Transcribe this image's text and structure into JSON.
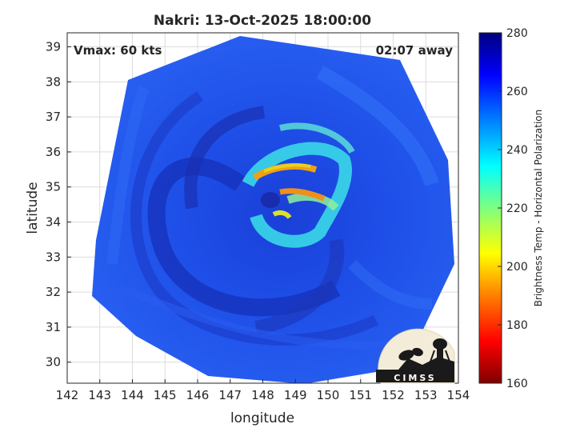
{
  "title": "Nakri: 13-Oct-2025 18:00:00",
  "annotations": {
    "vmax": "Vmax: 60 kts",
    "time_away": "02:07 away"
  },
  "axes": {
    "xlabel": "longitude",
    "ylabel": "latitude",
    "xlim": [
      142,
      154
    ],
    "ylim": [
      29.4,
      39.4
    ],
    "xticks": [
      "142",
      "143",
      "144",
      "145",
      "146",
      "147",
      "148",
      "149",
      "150",
      "151",
      "152",
      "153",
      "154"
    ],
    "yticks": [
      "30",
      "31",
      "32",
      "33",
      "34",
      "35",
      "36",
      "37",
      "38",
      "39"
    ],
    "grid": true
  },
  "colorbar": {
    "label": "Brightness Temp - Horizontal Polarization",
    "min": 160,
    "max": 280,
    "ticks": [
      "160",
      "180",
      "200",
      "220",
      "240",
      "260",
      "280"
    ]
  },
  "logo": {
    "text": "CIMSS"
  },
  "colors": {
    "background_swath": "#1f4fe6",
    "deep_blue": "#16249a",
    "eyewall_warm": "#f2a014",
    "eyewall_cyan": "#43e0e0"
  }
}
